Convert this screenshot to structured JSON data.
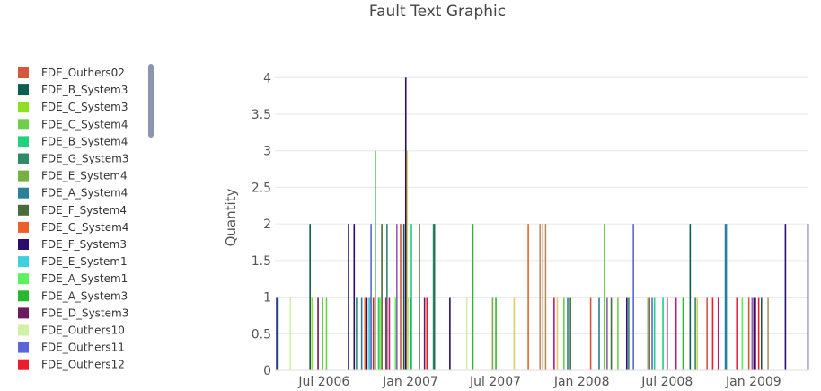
{
  "chart_data": {
    "type": "bar",
    "title": "Fault Text Graphic",
    "ylabel": "Quantity",
    "xlabel": "",
    "ylim": [
      0,
      4.2
    ],
    "xlim": [
      "2006-03-18",
      "2009-04-28"
    ],
    "yticks": [
      "0",
      "0.5",
      "1",
      "1.5",
      "2",
      "2.5",
      "3",
      "3.5",
      "4"
    ],
    "xticks": [
      {
        "date": "2006-07-01",
        "label": "Jul 2006"
      },
      {
        "date": "2007-01-01",
        "label": "Jan 2007"
      },
      {
        "date": "2007-07-01",
        "label": "Jul 2007"
      },
      {
        "date": "2008-01-01",
        "label": "Jan 2008"
      },
      {
        "date": "2008-07-01",
        "label": "Jul 2008"
      },
      {
        "date": "2009-01-01",
        "label": "Jan 2009"
      }
    ],
    "grid": true,
    "legend_position": "left",
    "series": [
      {
        "name": "FDE_Outhers02",
        "color": "#d4563f",
        "points": [
          [
            "2006-12-11",
            2
          ],
          [
            "2008-01-20",
            1
          ],
          [
            "2008-09-24",
            1
          ],
          [
            "2008-12-22",
            1
          ]
        ]
      },
      {
        "name": "FDE_B_System3",
        "color": "#0b5e50",
        "points": [
          [
            "2006-06-01",
            2
          ],
          [
            "2006-12-18",
            2
          ],
          [
            "2007-01-02",
            1
          ],
          [
            "2007-02-20",
            1
          ],
          [
            "2007-02-21",
            2
          ],
          [
            "2008-08-19",
            2
          ],
          [
            "2009-01-18",
            1
          ]
        ]
      },
      {
        "name": "FDE_C_System3",
        "color": "#8ee020",
        "points": [
          [
            "2006-06-05",
            1
          ],
          [
            "2006-10-28",
            1
          ],
          [
            "2006-12-26",
            1
          ]
        ]
      },
      {
        "name": "FDE_C_System4",
        "color": "#6fcf4a",
        "points": [
          [
            "2006-06-28",
            1
          ],
          [
            "2006-07-06",
            1
          ],
          [
            "2007-11-24",
            1
          ],
          [
            "2008-02-18",
            2
          ],
          [
            "2008-03-18",
            1
          ]
        ]
      },
      {
        "name": "FDE_B_System4",
        "color": "#1fd17a",
        "points": [
          [
            "2006-10-25",
            1
          ],
          [
            "2007-01-03",
            2
          ],
          [
            "2008-06-04",
            1
          ],
          [
            "2008-06-22",
            1
          ]
        ]
      },
      {
        "name": "FDE_G_System3",
        "color": "#2e8b67",
        "points": [
          [
            "2006-09-08",
            1
          ],
          [
            "2006-11-12",
            2
          ],
          [
            "2007-02-19",
            2
          ],
          [
            "2008-04-10",
            1
          ],
          [
            "2008-08-30",
            1
          ]
        ]
      },
      {
        "name": "FDE_E_System4",
        "color": "#76b043",
        "points": [
          [
            "2006-10-06",
            1
          ],
          [
            "2007-06-25",
            1
          ],
          [
            "2008-05-21",
            1
          ]
        ]
      },
      {
        "name": "FDE_A_System4",
        "color": "#2a7f9a",
        "points": [
          [
            "2006-09-19",
            1
          ],
          [
            "2007-12-02",
            1
          ],
          [
            "2008-02-07",
            1
          ],
          [
            "2008-11-02",
            2
          ],
          [
            "2008-11-04",
            2
          ]
        ]
      },
      {
        "name": "FDE_F_System4",
        "color": "#4a6b3a",
        "points": [
          [
            "2006-11-01",
            2
          ],
          [
            "2007-01-20",
            2
          ],
          [
            "2007-12-08",
            1
          ],
          [
            "2008-03-04",
            1
          ]
        ]
      },
      {
        "name": "FDE_G_System4",
        "color": "#e8622a",
        "points": [
          [
            "2006-09-26",
            1
          ],
          [
            "2007-09-09",
            2
          ],
          [
            "2008-11-26",
            1
          ]
        ]
      },
      {
        "name": "FDE_F_System3",
        "color": "#2b0d6e",
        "points": [
          [
            "2006-03-22",
            1
          ],
          [
            "2006-08-22",
            2
          ],
          [
            "2006-09-03",
            2
          ],
          [
            "2006-09-30",
            1
          ],
          [
            "2006-12-22",
            4
          ],
          [
            "2007-03-26",
            1
          ],
          [
            "2008-04-06",
            1
          ],
          [
            "2009-01-02",
            1
          ],
          [
            "2009-03-10",
            2
          ],
          [
            "2009-04-27",
            2
          ]
        ]
      },
      {
        "name": "FDE_E_System1",
        "color": "#3fd0dd",
        "points": [
          [
            "2006-03-25",
            1
          ],
          [
            "2006-10-05",
            1
          ]
        ]
      },
      {
        "name": "FDE_A_System1",
        "color": "#5cf05c",
        "points": [
          [
            "2006-11-30",
            1
          ],
          [
            "2008-12-08",
            1
          ]
        ]
      },
      {
        "name": "FDE_A_System3",
        "color": "#28b82e",
        "points": [
          [
            "2006-10-18",
            3
          ],
          [
            "2007-05-14",
            2
          ],
          [
            "2007-07-02",
            1
          ],
          [
            "2008-08-04",
            1
          ]
        ]
      },
      {
        "name": "FDE_D_System3",
        "color": "#6b1a5e",
        "points": [
          [
            "2006-06-18",
            1
          ],
          [
            "2007-01-31",
            1
          ],
          [
            "2008-05-24",
            1
          ],
          [
            "2009-01-05",
            1
          ]
        ]
      },
      {
        "name": "FDE_Outhers10",
        "color": "#d2f0a8",
        "points": [
          [
            "2006-04-20",
            1
          ],
          [
            "2007-05-01",
            1
          ]
        ]
      },
      {
        "name": "FDE_Outhers11",
        "color": "#5b66d8",
        "points": [
          [
            "2006-10-09",
            2
          ],
          [
            "2008-04-20",
            2
          ],
          [
            "2008-05-30",
            1
          ]
        ]
      },
      {
        "name": "FDE_Outhers12",
        "color": "#ee1a2e",
        "points": [
          [
            "2006-10-14",
            1
          ],
          [
            "2007-02-05",
            1
          ],
          [
            "2008-10-06",
            1
          ],
          [
            "2009-01-12",
            1
          ]
        ]
      },
      {
        "name": "",
        "color": "#c7166e",
        "points": [
          [
            "2006-11-10",
            1
          ],
          [
            "2006-11-17",
            1
          ],
          [
            "2007-11-03",
            1
          ],
          [
            "2008-07-01",
            1
          ],
          [
            "2008-07-20",
            1
          ],
          [
            "2008-10-18",
            1
          ],
          [
            "2008-11-28",
            1
          ]
        ]
      },
      {
        "name": "",
        "color": "#b89060",
        "points": [
          [
            "2007-10-04",
            2
          ],
          [
            "2007-10-10",
            2
          ],
          [
            "2007-10-16",
            2
          ],
          [
            "2009-02-01",
            1
          ]
        ]
      },
      {
        "name": "",
        "color": "#d8d060",
        "points": [
          [
            "2006-12-25",
            3
          ],
          [
            "2007-08-10",
            1
          ],
          [
            "2007-11-10",
            1
          ],
          [
            "2008-09-03",
            1
          ]
        ]
      },
      {
        "name": "",
        "color": "#9060b0",
        "points": [
          [
            "2006-12-03",
            2
          ],
          [
            "2008-02-24",
            1
          ],
          [
            "2008-12-29",
            1
          ]
        ]
      }
    ]
  }
}
